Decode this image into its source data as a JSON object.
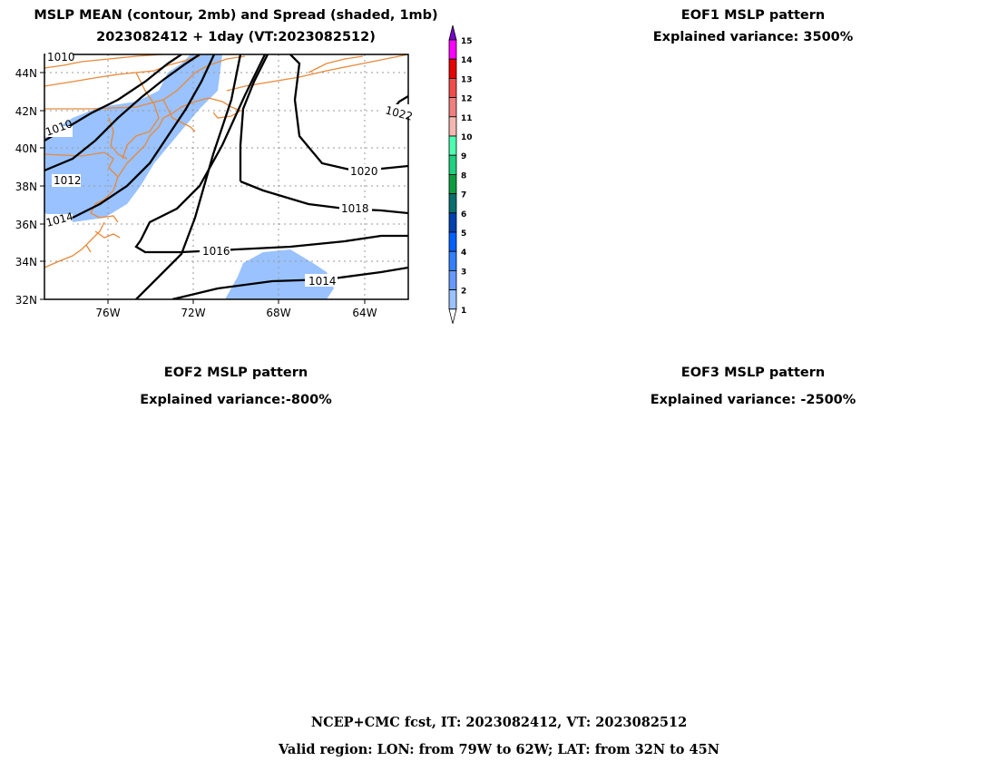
{
  "main_panel": {
    "title_line1": "MSLP MEAN (contour, 2mb) and Spread (shaded, 1mb)",
    "title_line2": "2023082412 + 1day (VT:2023082512)",
    "lat_labels": [
      "44N",
      "42N",
      "40N",
      "38N",
      "36N",
      "34N",
      "32N"
    ],
    "lon_labels": [
      "76W",
      "72W",
      "68W",
      "64W"
    ],
    "contour_labels": [
      "1010",
      "1010",
      "1012",
      "1014",
      "1016",
      "1014",
      "1018",
      "1020",
      "1022"
    ],
    "colors": {
      "spread_shade": "#99c2ff",
      "coastline": "#e8893a",
      "contour": "#000000",
      "grid": "#999999"
    }
  },
  "colorbar": {
    "labels": [
      "15",
      "14",
      "13",
      "12",
      "11",
      "10",
      "9",
      "8",
      "7",
      "6",
      "5",
      "4",
      "3",
      "2",
      "1"
    ],
    "colors": [
      "#7a00cc",
      "#ff00ff",
      "#e60000",
      "#f24d4d",
      "#f08080",
      "#f5b8b0",
      "#4dffb0",
      "#1fd080",
      "#0a9e40",
      "#0a6e6e",
      "#0040b0",
      "#0060ff",
      "#3380ff",
      "#6699ff",
      "#99c2ff",
      "#ffffff"
    ]
  },
  "eof1": {
    "title": "EOF1 MSLP pattern",
    "variance": "Explained variance: 3500%"
  },
  "eof2": {
    "title": "EOF2 MSLP pattern",
    "variance": "Explained variance:-800%"
  },
  "eof3": {
    "title": "EOF3 MSLP pattern",
    "variance": "Explained variance: -2500%"
  },
  "footer": {
    "line1": "NCEP+CMC fcst, IT: 2023082412, VT: 2023082512",
    "line2": "Valid region: LON: from 79W to 62W; LAT: from 32N to 45N"
  }
}
